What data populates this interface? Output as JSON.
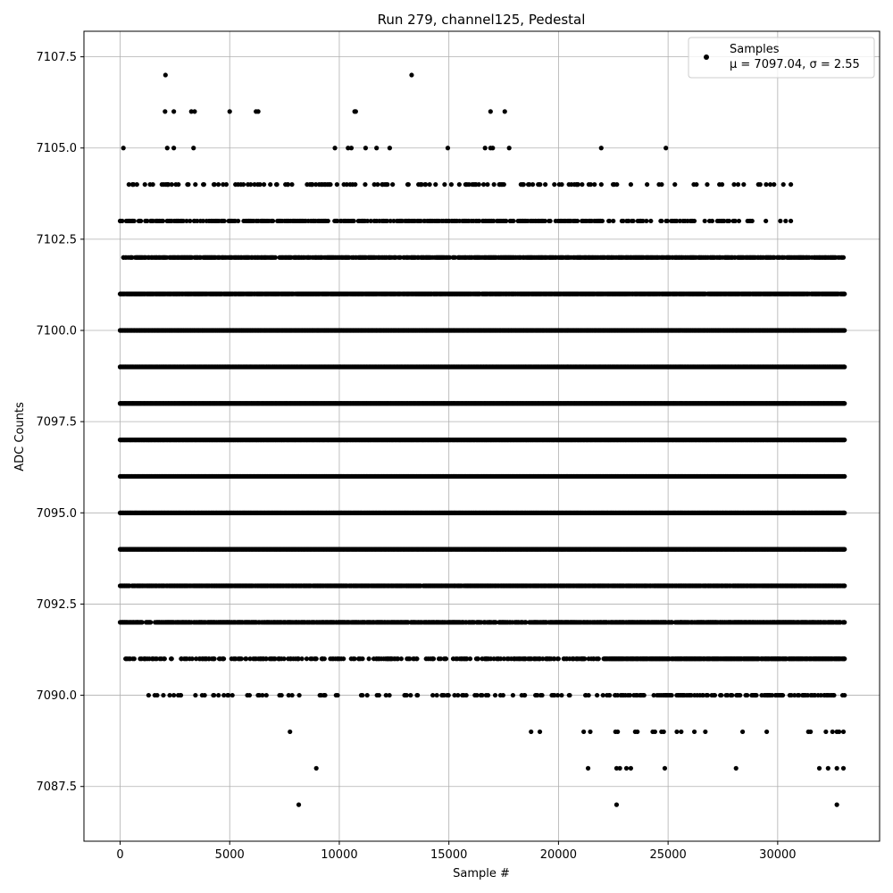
{
  "chart_data": {
    "type": "scatter",
    "title": "Run 279, channel125, Pedestal",
    "xlabel": "Sample #",
    "ylabel": "ADC Counts",
    "xlim": [
      -1650,
      34650
    ],
    "ylim": [
      7086,
      7108.2
    ],
    "xticks": [
      0,
      5000,
      10000,
      15000,
      20000,
      25000,
      30000
    ],
    "xtick_labels": [
      "0",
      "5000",
      "10000",
      "15000",
      "20000",
      "25000",
      "30000"
    ],
    "yticks": [
      7087.5,
      7090.0,
      7092.5,
      7095.0,
      7097.5,
      7100.0,
      7102.5,
      7105.0,
      7107.5
    ],
    "ytick_labels": [
      "7087.5",
      "7090.0",
      "7092.5",
      "7095.0",
      "7097.5",
      "7100.0",
      "7102.5",
      "7105.0",
      "7107.5"
    ],
    "grid": true,
    "legend_position": "top-right",
    "marker_color": "#000000",
    "series": [
      {
        "name": "Samples",
        "legend_stat_line": "μ = 7097.04, σ = 2.55",
        "levels": [
          {
            "y": 7107,
            "x": [
              2070,
              13300
            ]
          },
          {
            "y": 7106,
            "x": [
              2050,
              2450,
              3250,
              3400,
              5000,
              6200,
              6300,
              10700,
              10750,
              16900,
              17550
            ]
          },
          {
            "y": 7105,
            "x": [
              150,
              2150,
              2450,
              3350,
              9800,
              10400,
              10550,
              11200,
              11700,
              12300,
              14950,
              16650,
              16900,
              17000,
              17750,
              21950,
              24900
            ]
          },
          {
            "y": 7104,
            "x_range": [
              400,
              30600
            ],
            "density": 0.18,
            "sparse_after": 22000
          },
          {
            "y": 7103,
            "x_range": [
              0,
              30600
            ],
            "density": 0.45,
            "sparse_after": 22000
          },
          {
            "y": 7102,
            "x_range": [
              150,
              33000
            ],
            "density": 0.75
          },
          {
            "y": 7101,
            "x_range": [
              0,
              33050
            ],
            "density": 0.92
          },
          {
            "y": 7100,
            "x_range": [
              0,
              33050
            ],
            "density": 1.0
          },
          {
            "y": 7099,
            "x_range": [
              0,
              33050
            ],
            "density": 1.0
          },
          {
            "y": 7098,
            "x_range": [
              0,
              33050
            ],
            "density": 1.0
          },
          {
            "y": 7097,
            "x_range": [
              0,
              33050
            ],
            "density": 1.0
          },
          {
            "y": 7096,
            "x_range": [
              0,
              33050
            ],
            "density": 1.0
          },
          {
            "y": 7095,
            "x_range": [
              0,
              33050
            ],
            "density": 1.0
          },
          {
            "y": 7094,
            "x_range": [
              0,
              33050
            ],
            "density": 1.0
          },
          {
            "y": 7093,
            "x_range": [
              0,
              33050
            ],
            "density": 0.9
          },
          {
            "y": 7092,
            "x_range": [
              0,
              33050
            ],
            "density": 0.75
          },
          {
            "y": 7091,
            "x_range": [
              250,
              33050
            ],
            "density": 0.35,
            "dense_after": 22000
          },
          {
            "y": 7090,
            "x_range": [
              1300,
              33050
            ],
            "density": 0.12,
            "dense_after": 22000
          },
          {
            "y": 7089,
            "x": [
              7750,
              18750,
              19150,
              21150,
              21450,
              22600,
              22700,
              23500,
              23600,
              24300,
              24400,
              24700,
              24800,
              25400,
              25600,
              26200,
              26700,
              28400,
              29500,
              31400,
              31500,
              32200,
              32500,
              32700,
              32800,
              33000
            ]
          },
          {
            "y": 7088,
            "x": [
              8950,
              21350,
              22650,
              22800,
              23100,
              23300,
              24850,
              28100,
              31900,
              32300,
              32700,
              33000
            ]
          },
          {
            "y": 7087,
            "x": [
              8150,
              22650,
              32700
            ]
          }
        ]
      }
    ]
  }
}
